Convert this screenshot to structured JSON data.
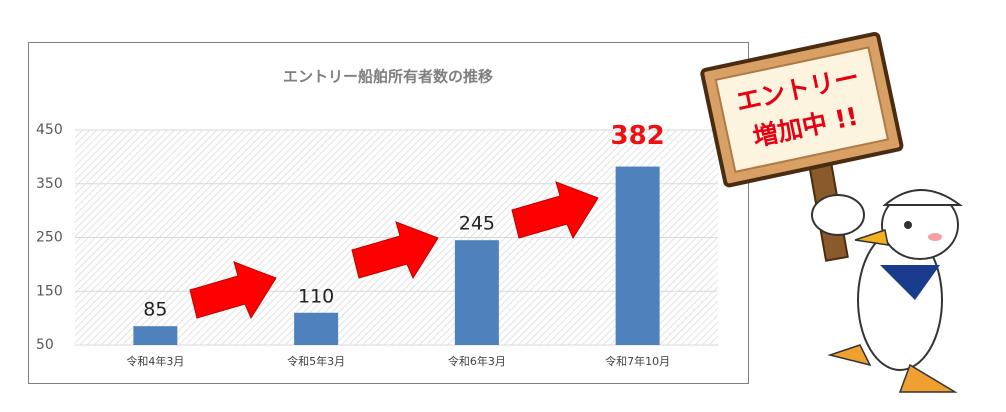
{
  "chart_data": {
    "type": "bar",
    "title": "エントリー船舶所有者数の推移",
    "categories": [
      "令和4年3月",
      "令和5年3月",
      "令和6年3月",
      "令和7年10月"
    ],
    "values": [
      85,
      110,
      245,
      382
    ],
    "color": "#4f81bd",
    "ylim": [
      50,
      450
    ],
    "yticks": [
      50,
      150,
      250,
      350,
      450
    ],
    "grid": true,
    "annotations": [
      "エントリー",
      "増加中 !!"
    ]
  }
}
